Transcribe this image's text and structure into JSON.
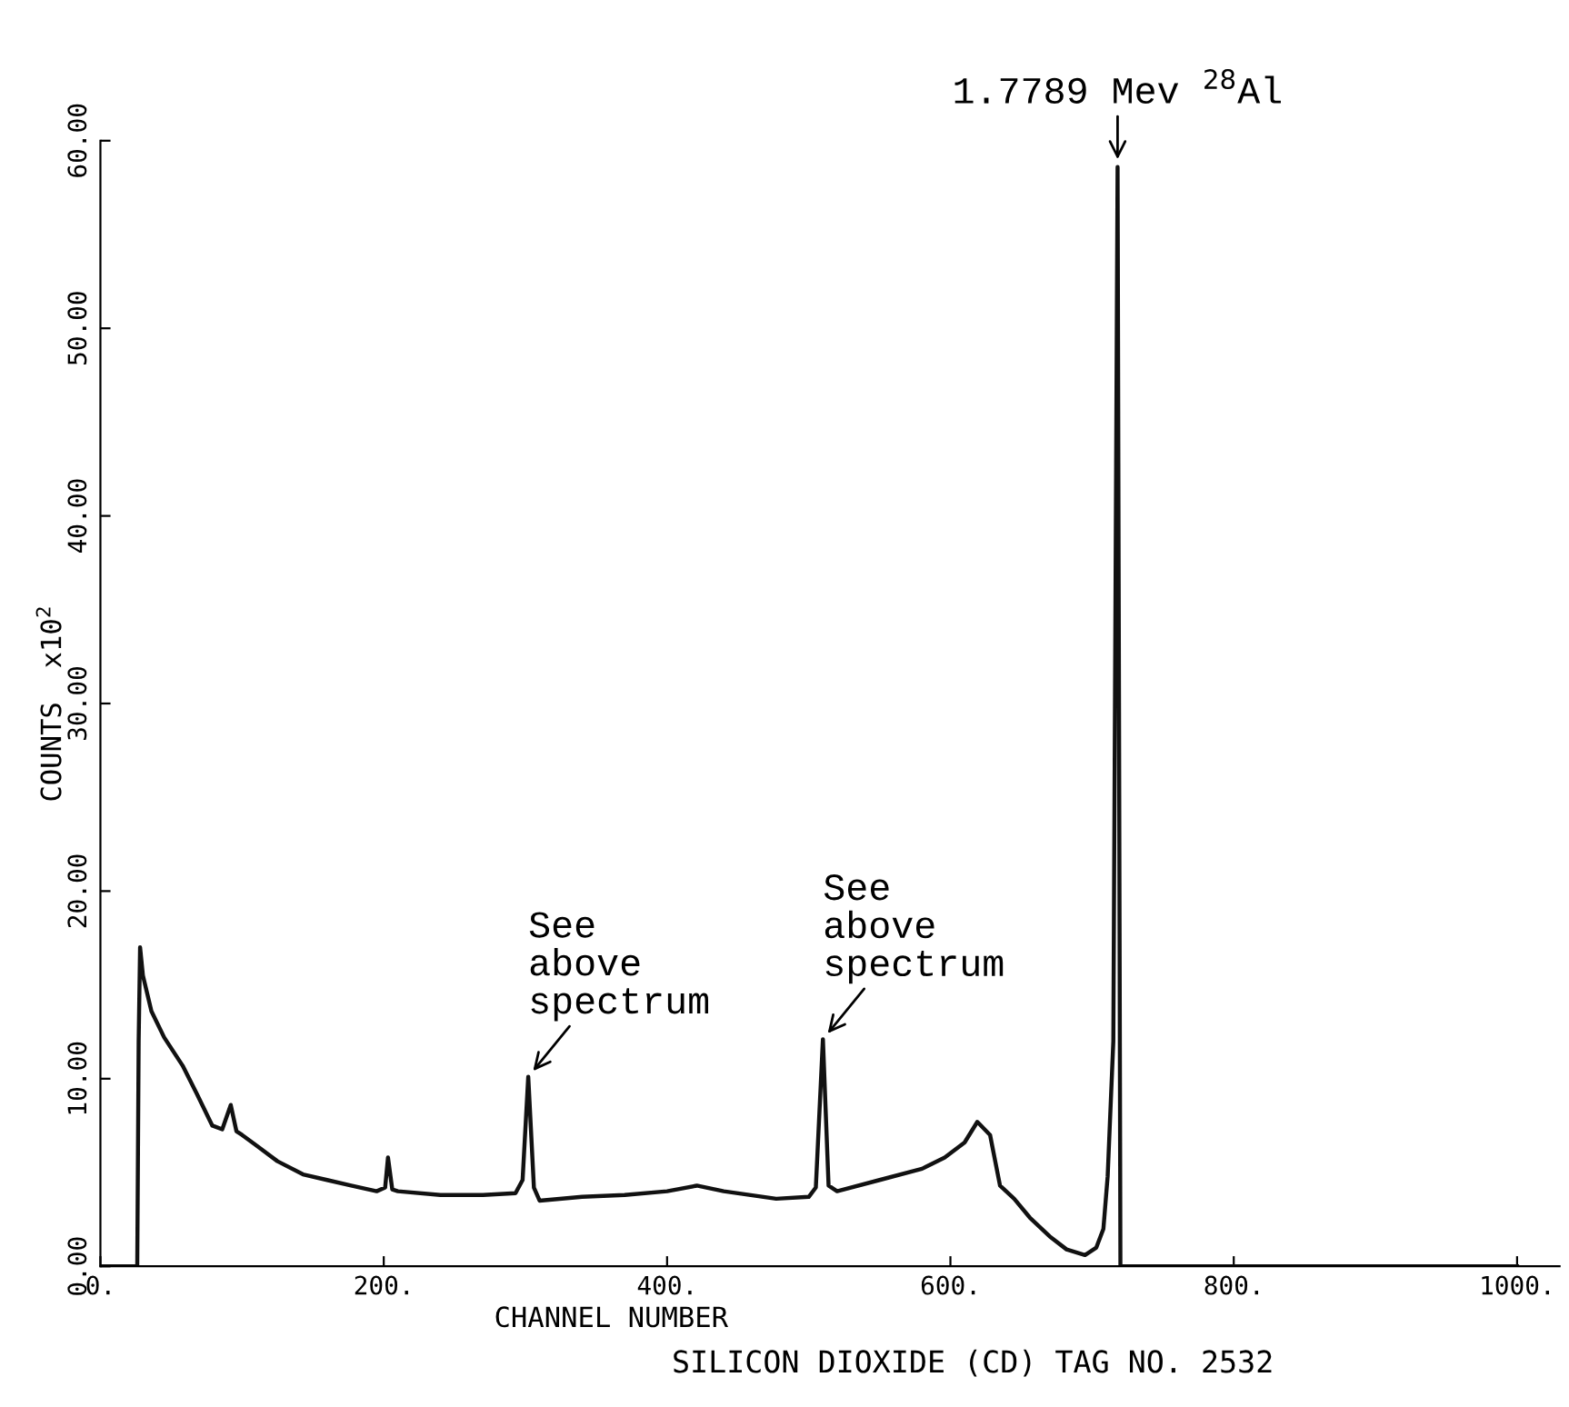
{
  "chart_data": {
    "type": "line",
    "xlabel": "CHANNEL NUMBER",
    "ylabel": "COUNTS  x10$^{2}$",
    "x": [
      0,
      26,
      27,
      28,
      30,
      36,
      45,
      58,
      68,
      79,
      86,
      92,
      96,
      100,
      109,
      125,
      143,
      160,
      177,
      195,
      201,
      203,
      206,
      210,
      240,
      270,
      293,
      298,
      302,
      306,
      310,
      340,
      370,
      400,
      421,
      440,
      477,
      500,
      505,
      510,
      514,
      520,
      550,
      580,
      596,
      610,
      619,
      628,
      635,
      645,
      656,
      670,
      682,
      695,
      703,
      708,
      711,
      715,
      718,
      719,
      720,
      750,
      800,
      900,
      1000
    ],
    "series": [
      {
        "color": "#111111",
        "values": [
          0,
          0,
          12,
          17,
          15.5,
          13.6,
          12.2,
          10.7,
          9.2,
          7.5,
          7.3,
          8.6,
          7.2,
          7,
          6.5,
          5.6,
          4.9,
          4.6,
          4.3,
          4,
          4.2,
          5.8,
          4.1,
          4,
          3.8,
          3.8,
          3.9,
          4.6,
          10.1,
          4.2,
          3.5,
          3.7,
          3.8,
          4,
          4.3,
          4,
          3.6,
          3.7,
          4.2,
          12.1,
          4.3,
          4,
          4.6,
          5.2,
          5.8,
          6.6,
          7.7,
          7,
          4.3,
          3.6,
          2.6,
          1.6,
          0.9,
          0.6,
          1,
          2,
          4.8,
          12,
          58.6,
          30,
          0,
          0,
          0,
          0,
          0
        ]
      }
    ],
    "xlim": [
      0,
      1030
    ],
    "ylim": [
      0,
      60
    ],
    "xticks": [
      {
        "value": 0,
        "label": "0."
      },
      {
        "value": 200,
        "label": "200."
      },
      {
        "value": 400,
        "label": "400."
      },
      {
        "value": 600,
        "label": "600."
      },
      {
        "value": 800,
        "label": "800."
      },
      {
        "value": 1000,
        "label": "1000."
      }
    ],
    "yticks": [
      {
        "value": 0,
        "label": "0.00"
      },
      {
        "value": 10,
        "label": "10.00"
      },
      {
        "value": 20,
        "label": "20.00"
      },
      {
        "value": 30,
        "label": "30.00"
      },
      {
        "value": 40,
        "label": "40.00"
      },
      {
        "value": 50,
        "label": "50.00"
      },
      {
        "value": 60,
        "label": "60.00"
      }
    ],
    "grid": false,
    "legend": false,
    "marker": "none",
    "line_style": "solid",
    "annotations": [
      {
        "text": "1.7789 Mev $^{28}$Al",
        "x": 718,
        "y": 58.6
      },
      {
        "text": "See\nabove\nspectrum",
        "x": 302,
        "y": 10.1
      },
      {
        "text": "See\nabove\nspectrum",
        "x": 510,
        "y": 12.1
      },
      "SILICON DIOXIDE (CD) TAG NO. 2532"
    ]
  }
}
